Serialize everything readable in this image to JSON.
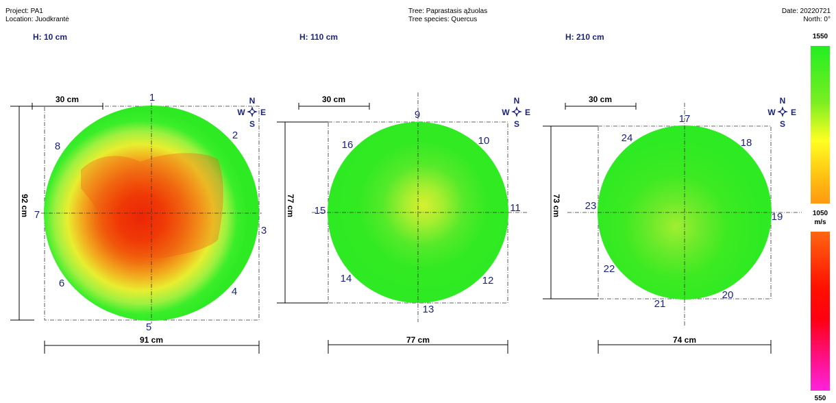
{
  "header": {
    "project": "Project: PA1",
    "location": "Location: Juodkrantė",
    "tree": "Tree: Paprastasis ąžuolas",
    "species": "Tree species: Quercus",
    "date": "Date: 20220721",
    "north": "North: 0°"
  },
  "sections": [
    {
      "title": "H: 10 cm",
      "scale_label": "30 cm",
      "width_label": "91 cm",
      "height_label": "92 cm",
      "sensors": [
        "1",
        "2",
        "3",
        "4",
        "5",
        "6",
        "7",
        "8"
      ],
      "condition": "decayed core"
    },
    {
      "title": "H: 110 cm",
      "scale_label": "30 cm",
      "width_label": "77 cm",
      "height_label": "77 cm",
      "sensors": [
        "9",
        "10",
        "11",
        "12",
        "13",
        "14",
        "15",
        "16"
      ],
      "condition": "sound"
    },
    {
      "title": "H: 210 cm",
      "scale_label": "30 cm",
      "width_label": "74 cm",
      "height_label": "73 cm",
      "sensors": [
        "17",
        "18",
        "19",
        "20",
        "21",
        "22",
        "23",
        "24"
      ],
      "condition": "sound"
    }
  ],
  "compass": {
    "n": "N",
    "s": "S",
    "e": "E",
    "w": "W"
  },
  "color_scale": {
    "max": "1550",
    "mid": "1050",
    "unit": "m/s",
    "min": "550",
    "colors": {
      "sound": "#33ee33",
      "mid": "#eeee33",
      "decay": "#ee2200",
      "severe": "#ff33ee"
    }
  }
}
